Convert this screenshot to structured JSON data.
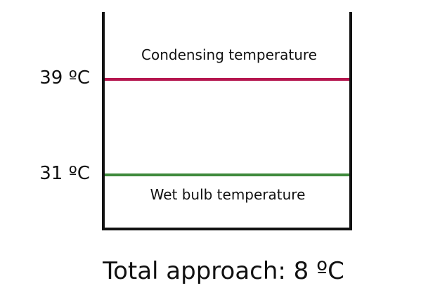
{
  "condensing": {
    "label": "Condensing temperature",
    "value": "39 ºC",
    "color": "#b5164e"
  },
  "wet_bulb": {
    "label": "Wet bulb temperature",
    "value": "31 ºC",
    "color": "#3f8a3c"
  },
  "approach": {
    "text": "Total approach: 8 ºC"
  }
}
